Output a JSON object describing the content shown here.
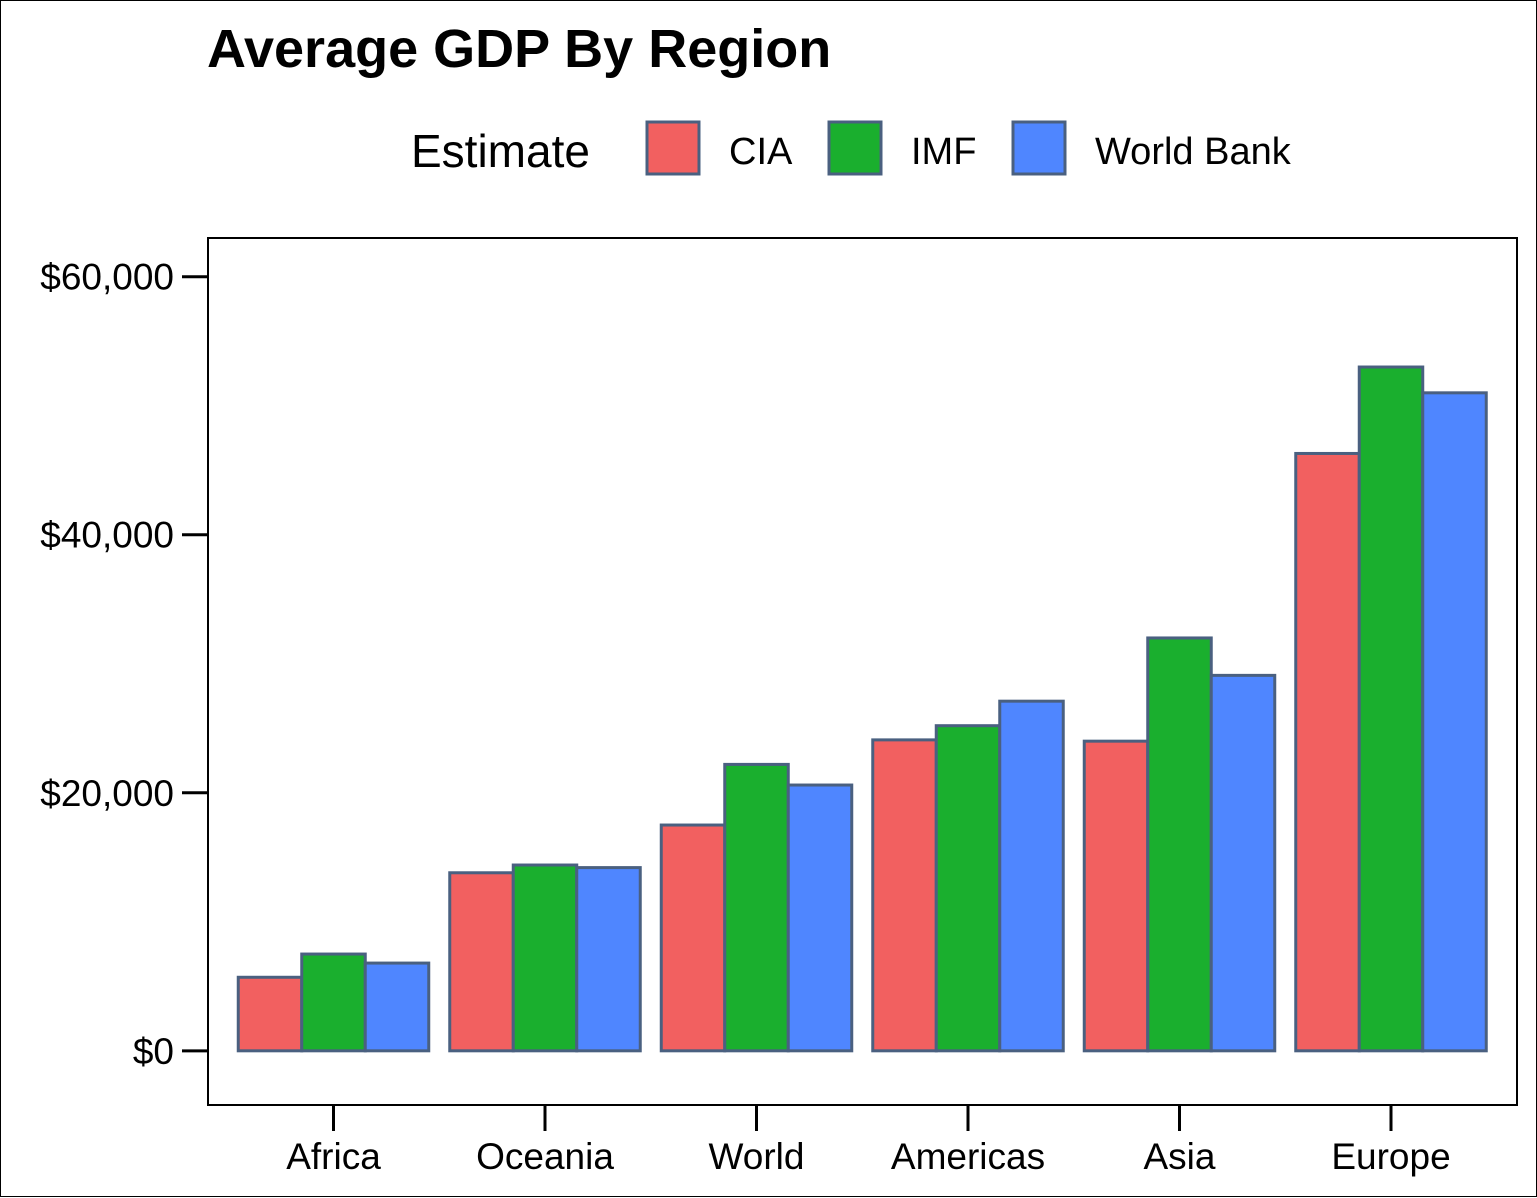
{
  "chart_data": {
    "type": "bar",
    "title": "Average GDP By Region",
    "xlabel": "",
    "ylabel": "",
    "categories": [
      "Africa",
      "Oceania",
      "World",
      "Americas",
      "Asia",
      "Europe"
    ],
    "series": [
      {
        "name": "CIA",
        "color": "#f26060",
        "values": [
          5700,
          13800,
          17500,
          24100,
          24000,
          46300
        ]
      },
      {
        "name": "IMF",
        "color": "#1aaf2e",
        "values": [
          7500,
          14400,
          22200,
          25200,
          32000,
          53000
        ]
      },
      {
        "name": "World Bank",
        "color": "#4f86ff",
        "values": [
          6800,
          14200,
          20600,
          27100,
          29100,
          51000
        ]
      }
    ],
    "legend": {
      "title": "Estimate",
      "position": "top"
    },
    "ylim": [
      -4200,
      63000
    ],
    "yticks": [
      0,
      20000,
      40000,
      60000
    ],
    "ytick_labels": [
      "$0",
      "$20,000",
      "$40,000",
      "$60,000"
    ],
    "grid": false,
    "bar_edge_color": "#4a6080"
  }
}
